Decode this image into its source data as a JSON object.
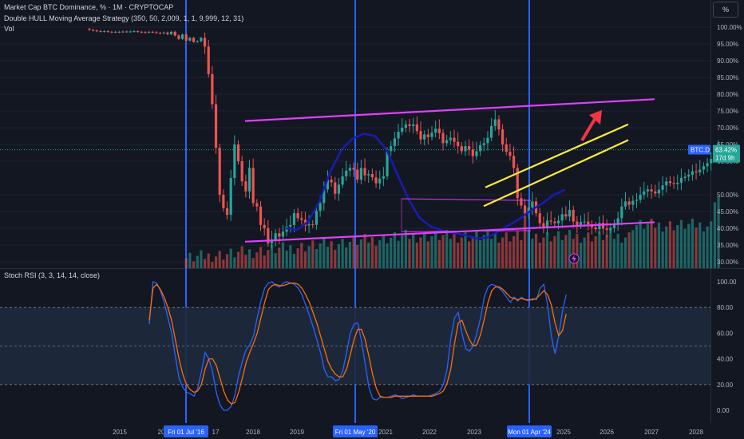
{
  "header": {
    "title": "Market Cap BTC Dominance, % · 1M · CRYPTOCAP",
    "strategy": "Double HULL Moving Average Strategy (350, 50, 2,009, 1, 1, 9,999, 12, 31)",
    "vol": "Vol",
    "scale_button": "%"
  },
  "rsi_header": {
    "title": "Stoch RSI (3, 3, 14, 14, close)"
  },
  "colors": {
    "background": "#131722",
    "up": "#26a69a",
    "down": "#ef5350",
    "hull": "#1a1ab8",
    "channel": "#e040fb",
    "yellow": "#ffeb3b",
    "vline": "#2962ff",
    "k": "#2962ff",
    "d": "#ff6d00",
    "rsi_band": "#1e2a3d",
    "arrow": "#f23645"
  },
  "icons": {
    "flash": "flash-icon"
  },
  "chart_data": [
    {
      "type": "candlestick",
      "title": "Market Cap BTC Dominance, %",
      "symbol": "BTC.D",
      "interval": "1M",
      "last_value_label": "63.42%",
      "countdown_label": "17d 9h",
      "yaxis": {
        "ticks": [
          "100.00%",
          "95.00%",
          "90.00%",
          "85.00%",
          "80.00%",
          "75.00%",
          "70.00%",
          "65.00%",
          "60.00%",
          "50.00%",
          "45.00%",
          "40.00%",
          "35.00%",
          "30.00%"
        ],
        "ylim": [
          29.5,
          101.5
        ]
      },
      "xaxis": {
        "ticks": [
          "2015",
          "20",
          "17",
          "2018",
          "2019",
          "2021",
          "2022",
          "2023",
          "2025",
          "2026",
          "2027",
          "2028"
        ]
      },
      "markers": [
        "Fri 01 Jul '16",
        "Fri 01 May '20",
        "Mon 01 Apr '24"
      ],
      "closes": [
        99.2,
        99.0,
        98.8,
        98.7,
        98.8,
        98.6,
        98.5,
        98.6,
        98.5,
        98.7,
        98.6,
        98.7,
        98.8,
        98.6,
        98.5,
        98.4,
        98.6,
        98.5,
        98.3,
        98.2,
        98.4,
        97.9,
        98.6,
        97.5,
        96.5,
        97.8,
        96.0,
        96.8,
        95.6,
        95.8,
        96.8,
        94.2,
        86.0,
        77.0,
        64.0,
        50.0,
        46.0,
        44.0,
        55.0,
        65.0,
        60.0,
        54.0,
        51.0,
        58.0,
        47.5,
        46.5,
        41.0,
        40.0,
        35.5,
        36.5,
        38.5,
        37.5,
        39.0,
        40.5,
        41.0,
        44.5,
        43.0,
        42.5,
        40.8,
        41.2,
        41.0,
        45.2,
        47.5,
        51.6,
        54.5,
        53.7,
        50.3,
        53.0,
        55.5,
        57.2,
        58.0,
        57.5,
        54.5,
        58.0,
        55.8,
        56.2,
        55.2,
        53.4,
        54.8,
        55.5,
        63.0,
        64.5,
        66.8,
        68.8,
        70.0,
        71.0,
        70.5,
        71.0,
        69.0,
        66.5,
        68.0,
        67.2,
        68.5,
        69.7,
        68.4,
        65.4,
        66.3,
        67.0,
        65.8,
        64.5,
        63.0,
        64.5,
        63.5,
        61.5,
        63.0,
        64.8,
        65.4,
        67.0,
        70.5,
        72.5,
        69.5,
        65.0,
        62.8,
        61.6,
        58.0,
        49.0,
        46.8,
        44.6,
        46.2,
        48.0,
        44.5,
        41.5,
        40.3,
        42.3,
        42.0,
        41.5,
        42.3,
        44.2,
        43.5,
        45.5,
        42.0,
        40.8,
        41.9,
        42.0,
        41.2,
        40.3,
        39.7,
        41.6,
        39.9,
        39.5,
        40.1,
        41.0,
        43.0,
        46.5,
        48.0,
        47.0,
        48.2,
        48.5,
        50.0,
        51.0,
        51.6,
        51.0,
        50.4,
        51.5,
        52.8,
        54.0,
        53.5,
        53.2,
        53.6,
        55.0,
        55.4,
        56.0,
        57.0,
        56.7,
        57.5,
        58.5,
        59.4,
        60.7,
        62.0,
        63.42
      ],
      "hma_series": [
        {
          "name": "HMA",
          "x": [
            358,
            372,
            386,
            400,
            414,
            428,
            442,
            456,
            470,
            484,
            498,
            512,
            526,
            540,
            554,
            568,
            582,
            596,
            610,
            624,
            638,
            652,
            666,
            680,
            694,
            708
          ],
          "y": [
            40.0,
            39.5,
            42.0,
            48.0,
            57.0,
            63.5,
            66.8,
            68.2,
            67.5,
            63.5,
            56.0,
            48.5,
            43.0,
            40.5,
            39.3,
            38.6,
            38.0,
            37.0,
            37.2,
            39.0,
            41.0,
            43.0,
            45.5,
            47.5,
            50.0,
            51.5
          ]
        }
      ],
      "channels": [
        {
          "name": "outer-upper",
          "from": [
            307,
            72.0
          ],
          "to": [
            820,
            78.5
          ]
        },
        {
          "name": "outer-lower",
          "from": [
            307,
            36.0
          ],
          "to": [
            820,
            41.8
          ]
        },
        {
          "name": "rect-top",
          "from": [
            503,
            48.8
          ],
          "to": [
            665,
            48.3
          ]
        },
        {
          "name": "rect-bottom",
          "from": [
            503,
            39.0
          ],
          "to": [
            665,
            39.3
          ]
        },
        {
          "name": "yellow-upper",
          "from": [
            608,
            52.2
          ],
          "to": [
            787,
            71.0
          ]
        },
        {
          "name": "yellow-lower",
          "from": [
            606,
            46.6
          ],
          "to": [
            787,
            66.3
          ]
        }
      ]
    },
    {
      "type": "line",
      "title": "Stoch RSI (3, 3, 14, 14, close)",
      "yaxis": {
        "ticks": [
          "100.00",
          "80.00",
          "60.00",
          "40.00",
          "20.00",
          "0.00"
        ],
        "ylim": [
          -4,
          105
        ]
      },
      "band": [
        20,
        80
      ],
      "series": [
        {
          "name": "K",
          "values": [
            67,
            100,
            99,
            93,
            84,
            72,
            60,
            42,
            25,
            18,
            14,
            13,
            11,
            17,
            30,
            45,
            40,
            30,
            14,
            4,
            0,
            0,
            3,
            12,
            27,
            38,
            47,
            51,
            58,
            72,
            85,
            95,
            99,
            100,
            97,
            96,
            99,
            100,
            99,
            98,
            95,
            90,
            82,
            74,
            65,
            55,
            45,
            32,
            26,
            26,
            23,
            24,
            31,
            45,
            60,
            67,
            68,
            54,
            36,
            18,
            9,
            8,
            10,
            10,
            10,
            11,
            12,
            11,
            9,
            10,
            11,
            12,
            11,
            11,
            11,
            11,
            12,
            13,
            15,
            20,
            32,
            56,
            72,
            76,
            60,
            48,
            46,
            50,
            60,
            72,
            88,
            96,
            98,
            97,
            95,
            92,
            88,
            84,
            88,
            85,
            88,
            86,
            85,
            87,
            86,
            95,
            98,
            82,
            58,
            44,
            58,
            77,
            90
          ]
        },
        {
          "name": "D",
          "values": [
            70,
            95,
            98,
            94,
            88,
            80,
            70,
            55,
            40,
            28,
            20,
            16,
            14,
            15,
            20,
            32,
            40,
            40,
            35,
            25,
            15,
            8,
            5,
            6,
            14,
            25,
            37,
            45,
            52,
            60,
            72,
            84,
            94,
            97,
            98,
            97,
            97,
            98,
            99,
            99,
            98,
            95,
            90,
            84,
            76,
            68,
            58,
            48,
            38,
            32,
            28,
            26,
            26,
            32,
            43,
            55,
            63,
            63,
            55,
            42,
            28,
            17,
            11,
            10,
            10,
            10,
            11,
            11,
            11,
            11,
            11,
            11,
            11,
            11,
            11,
            11,
            11,
            12,
            13,
            15,
            21,
            32,
            52,
            68,
            70,
            62,
            55,
            50,
            51,
            59,
            71,
            84,
            93,
            96,
            96,
            94,
            91,
            88,
            87,
            86,
            87,
            86,
            86,
            86,
            87,
            90,
            93,
            90,
            82,
            68,
            58,
            62,
            75
          ]
        }
      ]
    }
  ]
}
